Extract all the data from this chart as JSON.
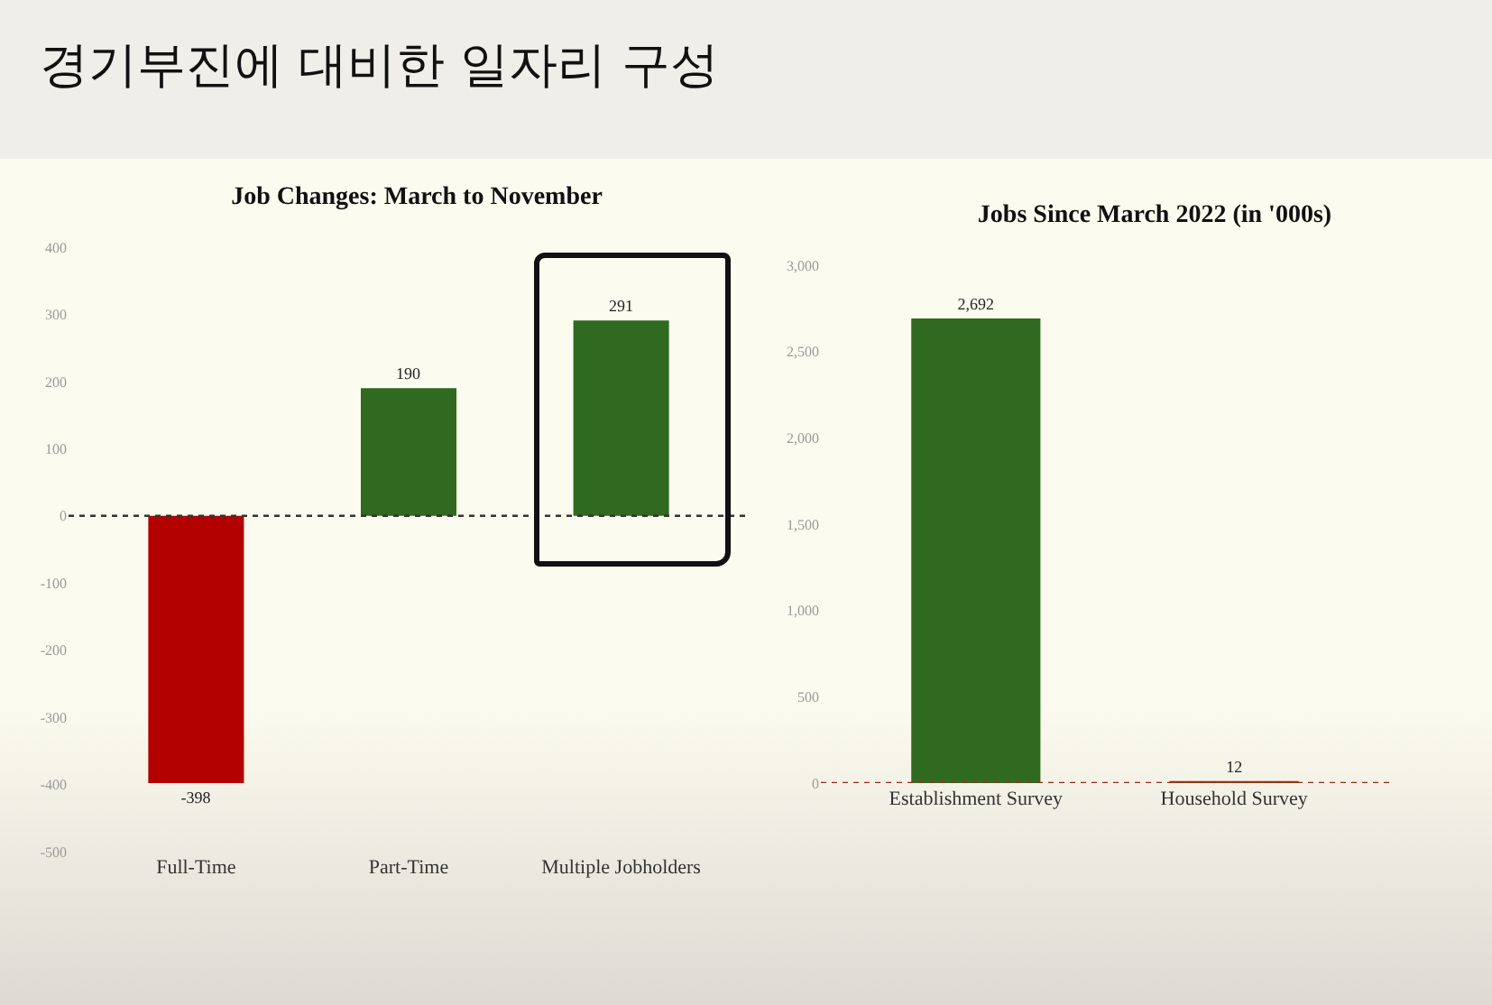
{
  "chart_data": [
    {
      "type": "other",
      "title": "경기부진에 대비한 일자리 구성"
    },
    {
      "type": "bar",
      "title": "Job Changes: March to November",
      "categories": [
        "Full-Time",
        "Part-Time",
        "Multiple Jobholders"
      ],
      "values": [
        -398,
        190,
        291
      ],
      "value_labels": [
        "-398",
        "190",
        "291"
      ],
      "colors": [
        "#b30000",
        "#2f6a20",
        "#2f6a20"
      ],
      "ylim": [
        -500,
        400
      ],
      "yticks": [
        -500,
        -400,
        -300,
        -200,
        -100,
        0,
        100,
        200,
        300,
        400
      ],
      "ref_lines": [
        {
          "axis": "y",
          "value": 0,
          "color": "#333333",
          "line_style": "dotted"
        }
      ]
    },
    {
      "type": "bar",
      "title": "Jobs Since March 2022 (in '000s)",
      "categories": [
        "Establishment Survey",
        "Household Survey"
      ],
      "values": [
        2692,
        12
      ],
      "value_labels": [
        "2,692",
        "12"
      ],
      "colors": [
        "#2f6a20",
        "#8b3a1a"
      ],
      "ylim": [
        0,
        3000
      ],
      "yticks": [
        0,
        500,
        {
          "value": 1000,
          "label": "1,000"
        },
        {
          "value": 1500,
          "label": "1,500"
        },
        {
          "value": 2000,
          "label": "2,000"
        },
        {
          "value": 2500,
          "label": "2,500"
        },
        {
          "value": 3000,
          "label": "3,000"
        }
      ],
      "ref_lines": [
        {
          "axis": "y",
          "value": 0,
          "color": "#9b2a1a",
          "line_style": "dotted"
        }
      ]
    }
  ]
}
